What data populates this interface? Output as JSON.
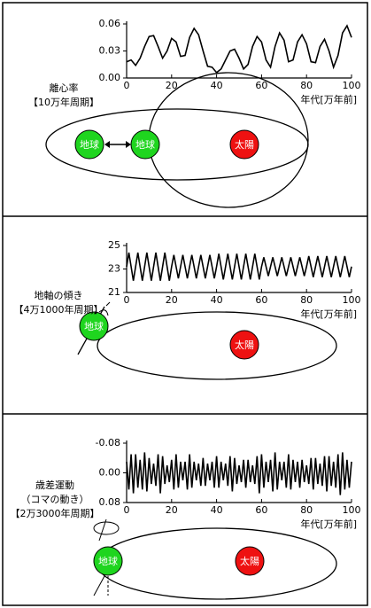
{
  "chart_data": [
    {
      "type": "line",
      "ylabel": [
        "離心率",
        "【10万年周期】"
      ],
      "xlabel": "年代[万年前]",
      "color": "#000000",
      "xlim": [
        0,
        100
      ],
      "ylim": [
        0,
        0.06
      ],
      "xticks": [
        0,
        20,
        40,
        60,
        80,
        100
      ],
      "yticks": [
        {
          "value": 0,
          "label": "0.00"
        },
        0.03,
        0.06
      ],
      "x": [
        0,
        2,
        4,
        6,
        8,
        10,
        12,
        14,
        16,
        18,
        20,
        22,
        24,
        26,
        28,
        30,
        32,
        34,
        36,
        38,
        40,
        42,
        44,
        46,
        48,
        50,
        52,
        54,
        56,
        58,
        60,
        62,
        64,
        66,
        68,
        70,
        72,
        74,
        76,
        78,
        80,
        82,
        84,
        86,
        88,
        90,
        92,
        94,
        96,
        98,
        100
      ],
      "values": [
        0.018,
        0.02,
        0.014,
        0.022,
        0.035,
        0.046,
        0.047,
        0.035,
        0.022,
        0.03,
        0.044,
        0.04,
        0.024,
        0.025,
        0.045,
        0.055,
        0.048,
        0.03,
        0.013,
        0.012,
        0.006,
        0.01,
        0.02,
        0.03,
        0.032,
        0.022,
        0.01,
        0.015,
        0.035,
        0.046,
        0.04,
        0.02,
        0.012,
        0.035,
        0.05,
        0.042,
        0.018,
        0.02,
        0.04,
        0.048,
        0.038,
        0.018,
        0.017,
        0.035,
        0.043,
        0.03,
        0.012,
        0.025,
        0.05,
        0.058,
        0.045
      ]
    },
    {
      "type": "line",
      "ylabel": [
        "地軸の傾き",
        "【4万1000年周期】"
      ],
      "xlabel": "年代[万年前]",
      "color": "#000000",
      "xlim": [
        0,
        100
      ],
      "ylim": [
        21,
        25
      ],
      "xticks": [
        0,
        20,
        40,
        60,
        80,
        100
      ],
      "yticks": [
        21,
        23,
        25
      ],
      "x": [
        0,
        1,
        2,
        3,
        4,
        5,
        6,
        7,
        8,
        9,
        10,
        11,
        12,
        13,
        14,
        15,
        16,
        17,
        18,
        19,
        20,
        21,
        22,
        23,
        24,
        25,
        26,
        27,
        28,
        29,
        30,
        31,
        32,
        33,
        34,
        35,
        36,
        37,
        38,
        39,
        40,
        41,
        42,
        43,
        44,
        45,
        46,
        47,
        48,
        49,
        50,
        51,
        52,
        53,
        54,
        55,
        56,
        57,
        58,
        59,
        60,
        61,
        62,
        63,
        64,
        65,
        66,
        67,
        68,
        69,
        70,
        71,
        72,
        73,
        74,
        75,
        76,
        77,
        78,
        79,
        80,
        81,
        82,
        83,
        84,
        85,
        86,
        87,
        88,
        89,
        90,
        91,
        92,
        93,
        94,
        95,
        96,
        97,
        98,
        99,
        100
      ],
      "values": [
        23.2,
        24.4,
        23.2,
        22.0,
        23.2,
        24.4,
        23.2,
        22.0,
        23.2,
        24.4,
        23.2,
        22.0,
        23.2,
        24.4,
        23.2,
        22.0,
        23.2,
        24.4,
        23.2,
        22.0,
        23.2,
        24.2,
        23.2,
        22.2,
        23.2,
        24.2,
        23.2,
        22.2,
        23.2,
        24.2,
        23.2,
        22.2,
        23.2,
        24.2,
        23.2,
        22.2,
        23.2,
        24.2,
        23.2,
        22.2,
        23.2,
        24.3,
        23.2,
        22.1,
        23.2,
        24.3,
        23.2,
        22.1,
        23.2,
        24.3,
        23.2,
        22.1,
        23.2,
        24.3,
        23.2,
        22.1,
        23.2,
        24.3,
        23.2,
        22.1,
        23.2,
        24.0,
        23.2,
        22.4,
        23.2,
        24.0,
        23.2,
        22.4,
        23.2,
        24.0,
        23.2,
        22.4,
        23.2,
        24.0,
        23.2,
        22.4,
        23.2,
        24.0,
        23.2,
        22.4,
        23.2,
        24.1,
        23.2,
        22.3,
        23.2,
        24.1,
        23.2,
        22.3,
        23.2,
        24.1,
        23.2,
        22.3,
        23.2,
        24.1,
        23.2,
        22.3,
        23.2,
        24.1,
        23.2,
        22.3,
        23.2
      ]
    },
    {
      "type": "line",
      "ylabel": [
        "歳差運動",
        "（コマの動き）",
        "【2万3000年周期】"
      ],
      "xlabel": "年代[万年前]",
      "color": "#000000",
      "xlim": [
        0,
        100
      ],
      "ylim": [
        0.08,
        -0.08
      ],
      "xticks": [
        0,
        20,
        40,
        60,
        80,
        100
      ],
      "yticks": [
        -0.08,
        {
          "value": 0,
          "label": "0.00"
        },
        0.08
      ],
      "x": [
        0,
        1,
        2,
        3,
        4,
        5,
        6,
        7,
        8,
        9,
        10,
        11,
        12,
        13,
        14,
        15,
        16,
        17,
        18,
        19,
        20,
        21,
        22,
        23,
        24,
        25,
        26,
        27,
        28,
        29,
        30,
        31,
        32,
        33,
        34,
        35,
        36,
        37,
        38,
        39,
        40,
        41,
        42,
        43,
        44,
        45,
        46,
        47,
        48,
        49,
        50,
        51,
        52,
        53,
        54,
        55,
        56,
        57,
        58,
        59,
        60,
        61,
        62,
        63,
        64,
        65,
        66,
        67,
        68,
        69,
        70,
        71,
        72,
        73,
        74,
        75,
        76,
        77,
        78,
        79,
        80,
        81,
        82,
        83,
        84,
        85,
        86,
        87,
        88,
        89,
        90,
        91,
        92,
        93,
        94,
        95,
        96,
        97,
        98,
        99,
        100
      ],
      "values": [
        -0.03,
        0.045,
        -0.05,
        0.055,
        -0.05,
        0.04,
        -0.035,
        0.045,
        -0.055,
        0.05,
        -0.04,
        0.03,
        -0.025,
        0.035,
        -0.05,
        0.055,
        -0.045,
        0.03,
        -0.02,
        0.025,
        -0.035,
        0.045,
        -0.05,
        0.04,
        -0.03,
        0.02,
        -0.03,
        0.045,
        -0.05,
        0.04,
        -0.03,
        0.02,
        -0.025,
        0.035,
        -0.04,
        0.035,
        -0.025,
        0.02,
        -0.03,
        0.04,
        -0.045,
        0.04,
        -0.03,
        0.02,
        -0.025,
        0.035,
        -0.045,
        0.05,
        -0.04,
        0.03,
        -0.02,
        0.025,
        -0.035,
        0.04,
        -0.035,
        0.025,
        -0.02,
        0.03,
        -0.045,
        0.055,
        -0.05,
        0.04,
        -0.03,
        0.025,
        -0.035,
        0.05,
        -0.055,
        0.045,
        -0.03,
        0.02,
        -0.03,
        0.04,
        -0.05,
        0.045,
        -0.035,
        0.025,
        -0.03,
        0.04,
        -0.035,
        0.025,
        -0.02,
        0.03,
        -0.04,
        0.045,
        -0.04,
        0.03,
        -0.025,
        0.035,
        -0.045,
        0.05,
        -0.045,
        0.035,
        -0.03,
        0.04,
        -0.05,
        0.06,
        -0.055,
        0.045,
        -0.035,
        0.04,
        -0.03
      ]
    }
  ],
  "labels": {
    "earth": "地球",
    "sun": "太陽"
  }
}
